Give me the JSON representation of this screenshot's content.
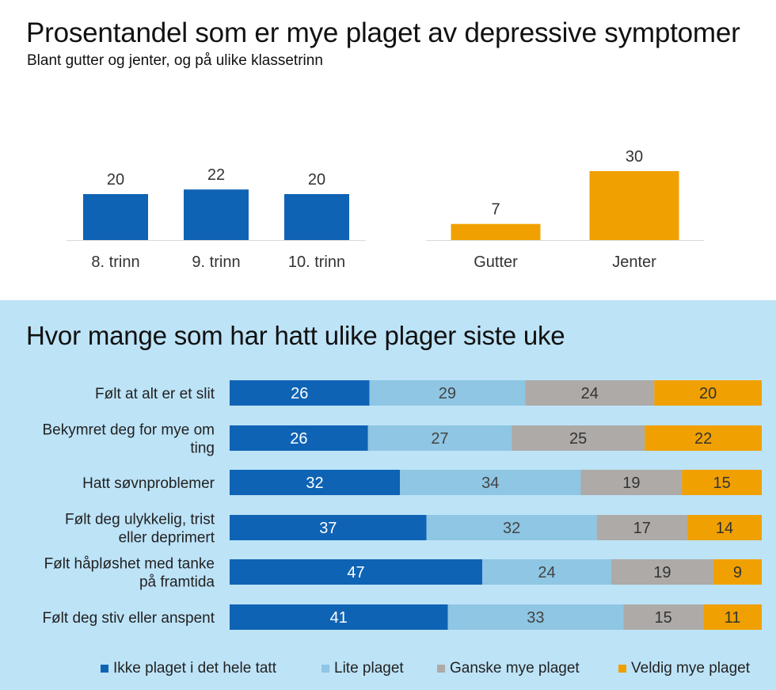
{
  "title": "Prosentandel som er mye plaget av depressive symptomer",
  "subtitle": "Blant gutter og jenter, og på ulike klassetrinn",
  "bottom_title": "Hvor mange som har hatt ulike plager siste uke",
  "colors": {
    "blue": "#0f63b4",
    "light_blue": "#8ec6e3",
    "gray": "#aeaaa7",
    "orange": "#f0a000",
    "panel_bg": "#bde3f7"
  },
  "chart_data": [
    {
      "type": "bar",
      "categories": [
        "8. trinn",
        "9. trinn",
        "10. trinn"
      ],
      "values": [
        20,
        22,
        20
      ],
      "color": "#0f63b4"
    },
    {
      "type": "bar",
      "categories": [
        "Gutter",
        "Jenter"
      ],
      "values": [
        7,
        30
      ],
      "color": "#f0a000"
    },
    {
      "type": "bar",
      "orientation": "horizontal",
      "stacked": true,
      "categories": [
        "Følt at alt er et slit",
        "Bekymret deg for mye om ting",
        "Hatt søvnproblemer",
        "Følt deg ulykkelig, trist eller deprimert",
        "Følt håpløshet med tanke på framtida",
        "Følt deg stiv eller anspent"
      ],
      "category_lines": [
        [
          "Følt at alt er et slit"
        ],
        [
          "Bekymret deg for mye om",
          "ting"
        ],
        [
          "Hatt søvnproblemer"
        ],
        [
          "Følt deg ulykkelig, trist",
          "eller deprimert"
        ],
        [
          "Følt håpløshet med tanke",
          "på framtida"
        ],
        [
          "Følt deg stiv eller anspent"
        ]
      ],
      "series": [
        {
          "name": "Ikke plaget i det hele tatt",
          "color": "#0f63b4",
          "label_color": "#ffffff",
          "values": [
            26,
            26,
            32,
            37,
            47,
            41
          ]
        },
        {
          "name": "Lite plaget",
          "color": "#8ec6e3",
          "label_color": "#444444",
          "values": [
            29,
            27,
            34,
            32,
            24,
            33
          ]
        },
        {
          "name": "Ganske mye plaget",
          "color": "#aeaaa7",
          "label_color": "#333333",
          "values": [
            24,
            25,
            19,
            17,
            19,
            15
          ]
        },
        {
          "name": "Veldig mye plaget",
          "color": "#f0a000",
          "label_color": "#333333",
          "values": [
            20,
            22,
            15,
            14,
            9,
            11
          ]
        }
      ],
      "legend": "bottom"
    }
  ]
}
